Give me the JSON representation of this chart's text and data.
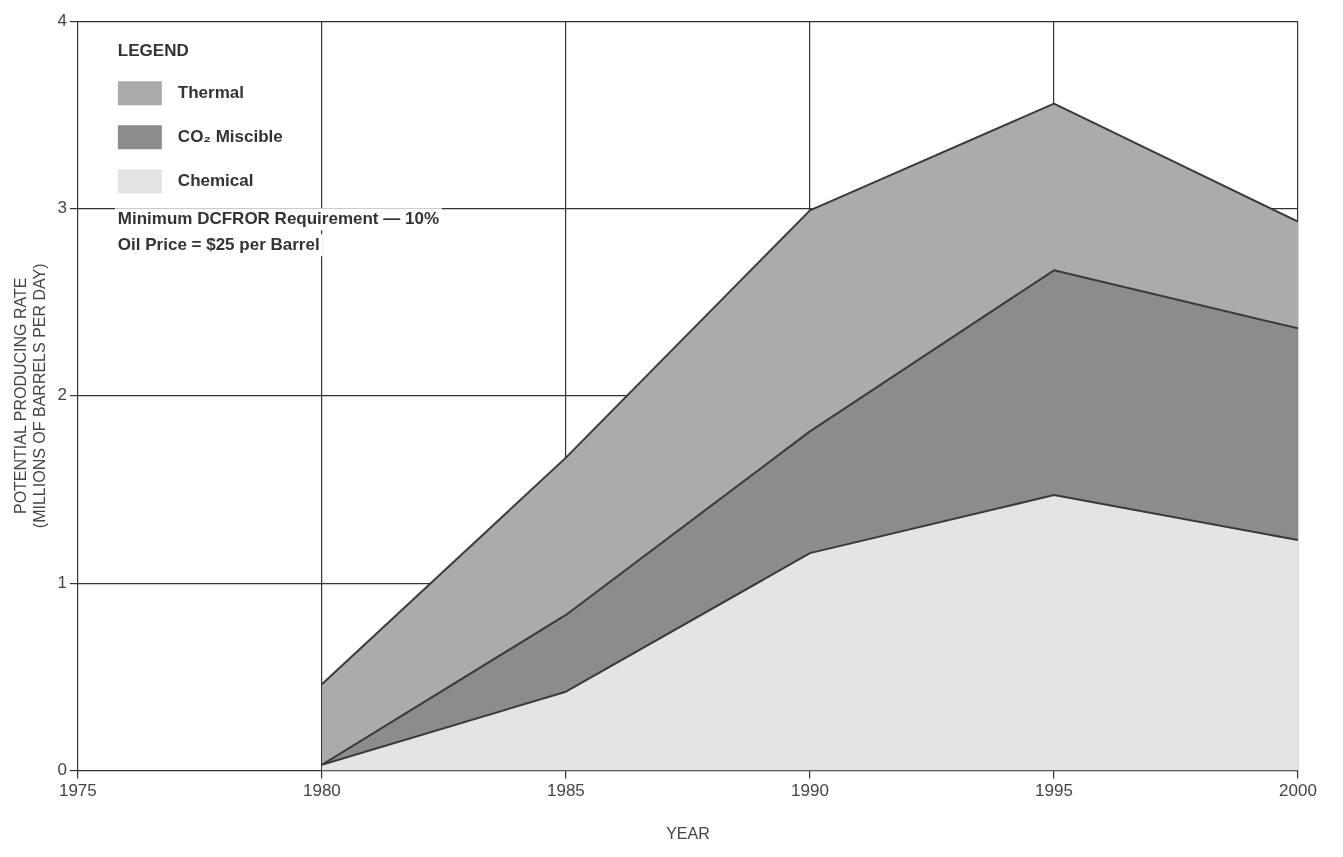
{
  "chart_data": {
    "type": "area",
    "stacked": true,
    "xlabel": "YEAR",
    "ylabel": "POTENTIAL PRODUCING RATE\n(MILLIONS OF BARRELS PER DAY)",
    "legend_title": "LEGEND",
    "legend": "top left",
    "grid": true,
    "x": [
      1980,
      1985,
      1990,
      1995,
      2000
    ],
    "xlim": [
      1975,
      2000
    ],
    "xticks": [
      1975,
      1980,
      1985,
      1990,
      1995,
      2000
    ],
    "ylim": [
      0,
      4
    ],
    "yticks": [
      0,
      1,
      2,
      3,
      4
    ],
    "series": [
      {
        "name": "Chemical",
        "color": "#e4e4e4",
        "values": [
          0.03,
          0.42,
          1.16,
          1.47,
          1.23
        ]
      },
      {
        "name": "CO₂ Miscible",
        "color": "#8c8c8c",
        "values": [
          0,
          0.41,
          0.65,
          1.2,
          1.13
        ]
      },
      {
        "name": "Thermal",
        "color": "#ababab",
        "values": [
          0.43,
          0.84,
          1.18,
          0.89,
          0.57
        ]
      }
    ],
    "annotations": [
      "Minimum DCFROR Requirement — 10%",
      "Oil Price = $25 per Barrel"
    ]
  }
}
